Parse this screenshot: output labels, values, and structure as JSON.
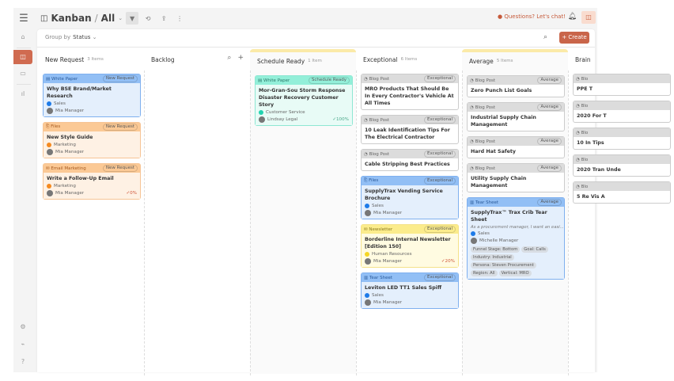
{
  "topbar": {
    "title": "Kanban",
    "view": "All",
    "chat": "Questions? Let's chat!"
  },
  "toolbar": {
    "group_by_label": "Group by",
    "group_by_value": "Status",
    "create_label": "Create"
  },
  "colors": {
    "accent": "#c9654a"
  },
  "columns": [
    {
      "title": "New Request",
      "count": "3 Items",
      "cards": [
        {
          "type": "White Paper",
          "icon": "▤",
          "status": "New Request",
          "theme": "blue",
          "title": "Why BSE Brand/Market Research",
          "dept": "Sales",
          "dept_color": "#1e7be8",
          "owner": "Mia Manager"
        },
        {
          "type": "Files",
          "icon": "⎘",
          "status": "New Request",
          "theme": "orange",
          "title": "New Style Guide",
          "dept": "Marketing",
          "dept_color": "#f58a1f",
          "owner": "Mia Manager"
        },
        {
          "type": "Email Marketing",
          "icon": "✉",
          "status": "New Request",
          "theme": "orange",
          "title": "Write a Follow-Up Email",
          "dept": "Marketing",
          "dept_color": "#f58a1f",
          "owner": "Mia Manager",
          "progress": "✓0%",
          "progress_color": "#d0563a"
        }
      ]
    },
    {
      "title": "Backlog",
      "count": "",
      "cards": []
    },
    {
      "title": "Schedule Ready",
      "count": "1 Item",
      "highlight": true,
      "cards": [
        {
          "type": "White Paper",
          "icon": "▤",
          "status": "Schedule Ready",
          "theme": "teal",
          "title": "Mor-Gran-Sou Storm Response Disaster Recovery Customer Story",
          "dept": "Customer Service",
          "dept_color": "#22d3b0",
          "owner": "Lindsay Legal",
          "progress": "✓100%",
          "progress_color": "#4aa88a"
        }
      ]
    },
    {
      "title": "Exceptional",
      "count": "6 Items",
      "cards": [
        {
          "type": "Blog Post",
          "icon": "◔",
          "status": "Exceptional",
          "theme": "gray",
          "title": "MRO Products That Should Be In Every Contractor's Vehicle At All Times"
        },
        {
          "type": "Blog Post",
          "icon": "◔",
          "status": "Exceptional",
          "theme": "gray",
          "title": "10 Leak Identification Tips For The Electrical Contractor"
        },
        {
          "type": "Blog Post",
          "icon": "◔",
          "status": "Exceptional",
          "theme": "gray",
          "title": "Cable Stripping Best Practices"
        },
        {
          "type": "Files",
          "icon": "⎘",
          "status": "Exceptional",
          "theme": "blue",
          "title": "SupplyTrax Vending Service Brochure",
          "dept": "Sales",
          "dept_color": "#1e7be8",
          "owner": "Mia Manager"
        },
        {
          "type": "Newsletter",
          "icon": "✉",
          "status": "Exceptional",
          "theme": "yellow",
          "title": "Borderline Internal Newsletter [Edition 150]",
          "dept": "Human Resources",
          "dept_color": "#f5d623",
          "owner": "Mia Manager",
          "progress": "✓20%",
          "progress_color": "#d0563a"
        },
        {
          "type": "Tear Sheet",
          "icon": "▥",
          "status": "Exceptional",
          "theme": "blue",
          "title": "Leviton LED TT1 Sales Spiff",
          "dept": "Sales",
          "dept_color": "#1e7be8",
          "owner": "Mia Manager"
        }
      ]
    },
    {
      "title": "Average",
      "count": "5 Items",
      "highlight": true,
      "cards": [
        {
          "type": "Blog Post",
          "icon": "◔",
          "status": "Average",
          "theme": "gray",
          "title": "Zero Punch List Goals"
        },
        {
          "type": "Blog Post",
          "icon": "◔",
          "status": "Average",
          "theme": "gray",
          "title": "Industrial Supply Chain Management"
        },
        {
          "type": "Blog Post",
          "icon": "◔",
          "status": "Average",
          "theme": "gray",
          "title": "Hard Hat Safety"
        },
        {
          "type": "Blog Post",
          "icon": "◔",
          "status": "Average",
          "theme": "gray",
          "title": "Utility Supply Chain Management"
        },
        {
          "type": "Tear Sheet",
          "icon": "▥",
          "status": "Average",
          "theme": "blue",
          "title": "SupplyTrax™ Trax Crib Tear Sheet",
          "desc": "As a procurement manager, I want an easi...",
          "dept": "Sales",
          "dept_color": "#1e7be8",
          "owner": "Michelle Manager",
          "tags": [
            "Funnel Stage: Bottom",
            "Goal: Calls",
            "Industry: Industrial",
            "Persona: Steven Procurement",
            "Region: All",
            "Vertical: MRO"
          ]
        }
      ]
    },
    {
      "title": "Brain",
      "count": "",
      "cards": [
        {
          "type": "Blo",
          "icon": "◔",
          "status": "",
          "theme": "gray",
          "title": "PPE T"
        },
        {
          "type": "Blo",
          "icon": "◔",
          "status": "",
          "theme": "gray",
          "title": "2020 For T"
        },
        {
          "type": "Blo",
          "icon": "◔",
          "status": "",
          "theme": "gray",
          "title": "10 In Tips"
        },
        {
          "type": "Blo",
          "icon": "◔",
          "status": "",
          "theme": "gray",
          "title": "2020 Tran Unde"
        },
        {
          "type": "Blo",
          "icon": "◔",
          "status": "",
          "theme": "gray",
          "title": "5 Re Vis A"
        }
      ]
    }
  ]
}
